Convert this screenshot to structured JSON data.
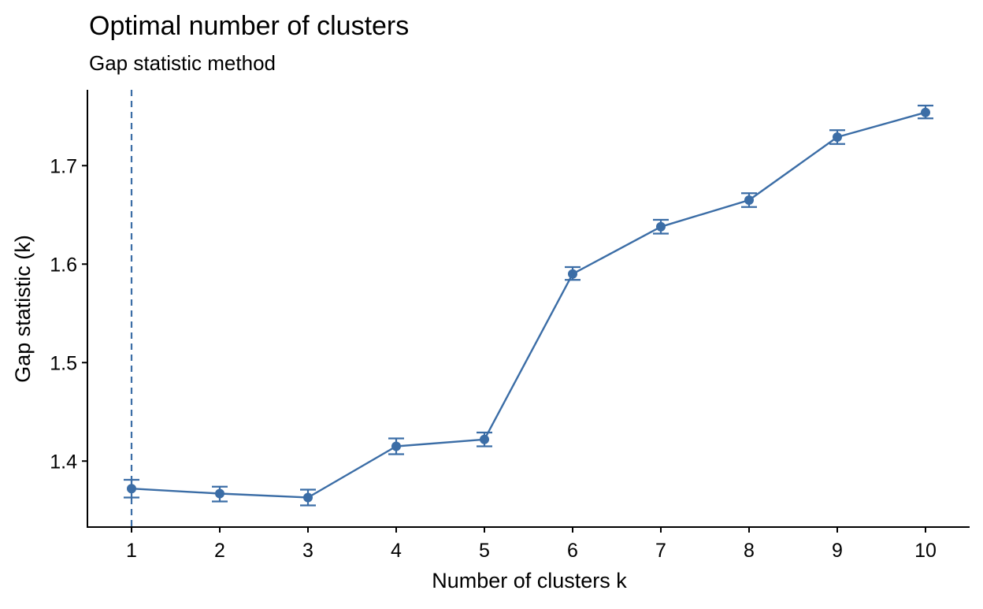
{
  "chart_data": {
    "type": "line",
    "title": "Optimal number of clusters",
    "subtitle": "Gap statistic method",
    "xlabel": "Number of clusters k",
    "ylabel": "Gap statistic (k)",
    "x": [
      1,
      2,
      3,
      4,
      5,
      6,
      7,
      8,
      9,
      10
    ],
    "x_tick_labels": [
      "1",
      "2",
      "3",
      "4",
      "5",
      "6",
      "7",
      "8",
      "9",
      "10"
    ],
    "y_ticks": [
      1.4,
      1.5,
      1.6,
      1.7
    ],
    "y_tick_labels": [
      "1.4",
      "1.5",
      "1.6",
      "1.7"
    ],
    "xlim": [
      0.5,
      10.5
    ],
    "ylim": [
      1.333,
      1.777
    ],
    "grid": false,
    "series": [
      {
        "values": [
          1.372,
          1.367,
          1.363,
          1.415,
          1.422,
          1.59,
          1.638,
          1.665,
          1.729,
          1.754
        ],
        "error_low": [
          1.363,
          1.359,
          1.355,
          1.407,
          1.415,
          1.584,
          1.631,
          1.658,
          1.722,
          1.748
        ],
        "error_high": [
          1.381,
          1.374,
          1.371,
          1.423,
          1.429,
          1.597,
          1.645,
          1.672,
          1.736,
          1.761
        ],
        "color": "#3b6da6"
      }
    ],
    "optimal_k": 1,
    "reference_line_color": "#3b6da6"
  }
}
